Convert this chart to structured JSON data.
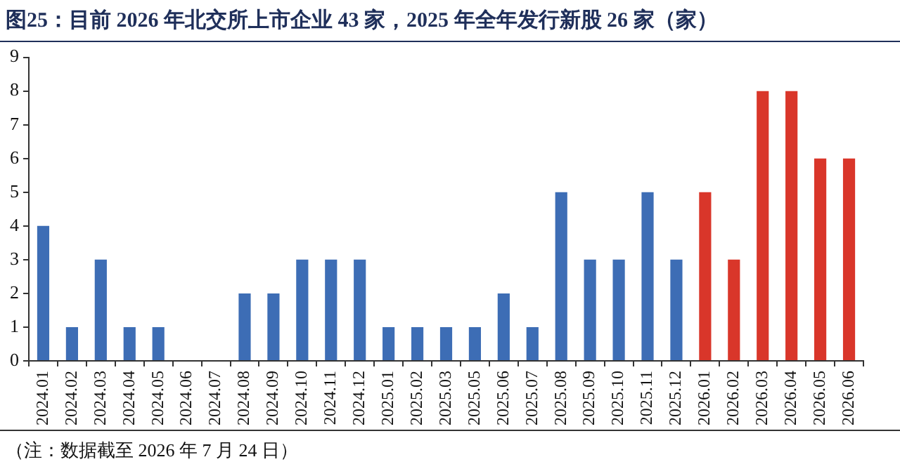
{
  "chart_data": {
    "type": "bar",
    "title": "图25：目前 2026 年北交所上市企业 43 家，2025 年全年发行新股 26 家（家）",
    "categories": [
      "2024.01",
      "2024.02",
      "2024.03",
      "2024.04",
      "2024.05",
      "2024.06",
      "2024.07",
      "2024.08",
      "2024.09",
      "2024.10",
      "2024.11",
      "2024.12",
      "2025.01",
      "2025.02",
      "2025.03",
      "2025.05",
      "2025.06",
      "2025.07",
      "2025.08",
      "2025.09",
      "2025.10",
      "2025.11",
      "2025.12",
      "2026.01",
      "2026.02",
      "2026.03",
      "2026.04",
      "2026.05",
      "2026.06"
    ],
    "values": [
      4,
      1,
      3,
      1,
      1,
      0,
      0,
      2,
      2,
      3,
      3,
      3,
      1,
      1,
      1,
      1,
      2,
      1,
      5,
      3,
      3,
      5,
      3,
      5,
      3,
      8,
      8,
      6,
      6
    ],
    "colors": [
      "#3d6db5",
      "#3d6db5",
      "#3d6db5",
      "#3d6db5",
      "#3d6db5",
      "#3d6db5",
      "#3d6db5",
      "#3d6db5",
      "#3d6db5",
      "#3d6db5",
      "#3d6db5",
      "#3d6db5",
      "#3d6db5",
      "#3d6db5",
      "#3d6db5",
      "#3d6db5",
      "#3d6db5",
      "#3d6db5",
      "#3d6db5",
      "#3d6db5",
      "#3d6db5",
      "#3d6db5",
      "#3d6db5",
      "#d9362a",
      "#d9362a",
      "#d9362a",
      "#d9362a",
      "#d9362a",
      "#d9362a"
    ],
    "ylim": [
      0,
      9
    ],
    "yticks": [
      0,
      1,
      2,
      3,
      4,
      5,
      6,
      7,
      8,
      9
    ],
    "annotations": [
      "（注：数据截至 2026 年 7 月 24 日）"
    ]
  }
}
